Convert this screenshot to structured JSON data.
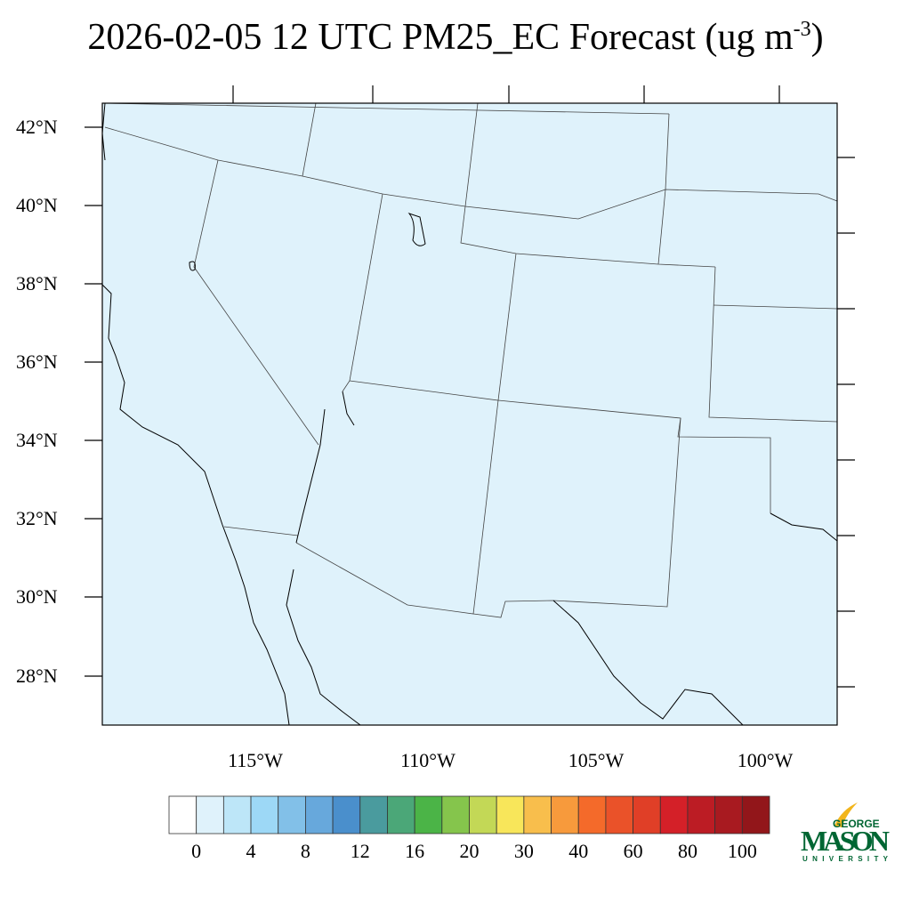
{
  "title": {
    "main": "2026-02-05 12 UTC PM25_EC Forecast (ug m",
    "superscript": "-3",
    "close": ")"
  },
  "map": {
    "background_color": "#dff2fb",
    "lat_labels": [
      "42°N",
      "40°N",
      "38°N",
      "36°N",
      "34°N",
      "32°N",
      "30°N",
      "28°N"
    ],
    "lon_labels": [
      "115°W",
      "110°W",
      "105°W",
      "100°W"
    ]
  },
  "colorbar": {
    "colors": [
      "#ffffff",
      "#dff2fb",
      "#bde6f8",
      "#9dd8f6",
      "#82c0e8",
      "#67a8dc",
      "#4a8fcc",
      "#4a9b9e",
      "#4ba778",
      "#4bb447",
      "#85c54c",
      "#c3d856",
      "#f8e65a",
      "#f8be4c",
      "#f79a3c",
      "#f46a2a",
      "#ea5229",
      "#e03f27",
      "#d42028",
      "#bc1c24",
      "#a81a20",
      "#92161a"
    ],
    "labels": [
      "0",
      "4",
      "8",
      "12",
      "16",
      "20",
      "30",
      "40",
      "60",
      "80",
      "100"
    ]
  },
  "logo": {
    "top": "GEORGE",
    "main": "MASON",
    "bottom": "UNIVERSITY",
    "color": "#006633",
    "accent": "#f2b51b"
  }
}
